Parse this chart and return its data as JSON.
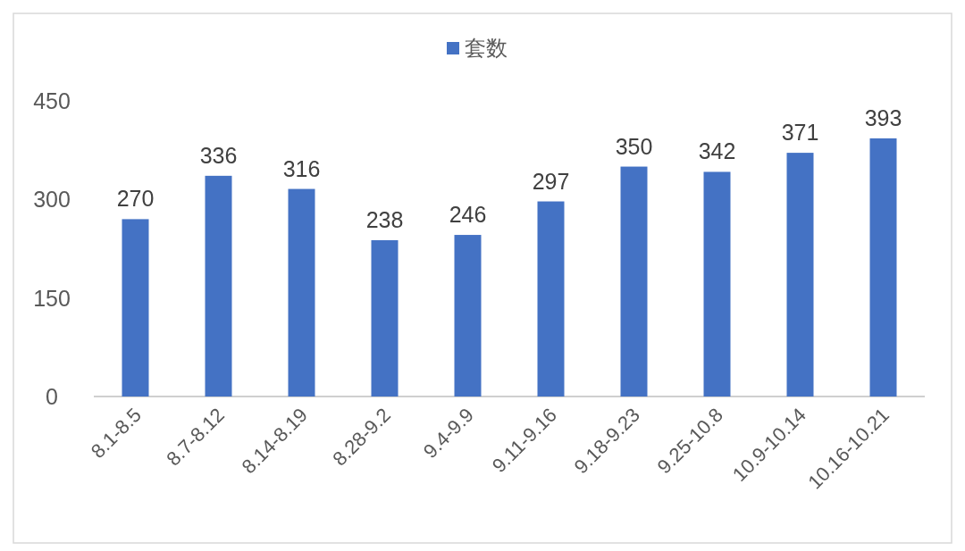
{
  "chart_data": {
    "type": "bar",
    "categories": [
      "8.1-8.5",
      "8.7-8.12",
      "8.14-8.19",
      "8.28-9.2",
      "9.4-9.9",
      "9.11-9.16",
      "9.18-9.23",
      "9.25-10.8",
      "10.9-10.14",
      "10.16-10.21"
    ],
    "series": [
      {
        "name": "套数",
        "color": "#4472c4",
        "values": [
          270,
          336,
          316,
          238,
          246,
          297,
          350,
          342,
          371,
          393
        ]
      }
    ],
    "ylim": [
      0,
      450
    ],
    "yticks": [
      0,
      150,
      300,
      450
    ],
    "data_labels": true,
    "legend": "top"
  }
}
